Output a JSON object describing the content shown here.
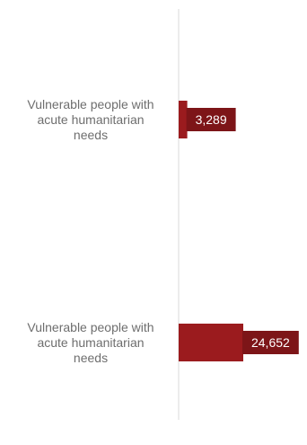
{
  "chart_data": {
    "type": "bar",
    "orientation": "horizontal",
    "categories": [
      "Vulnerable people with acute humanitarian needs",
      "Vulnerable people with acute humanitarian needs"
    ],
    "values": [
      3289,
      24652
    ],
    "value_labels": [
      "3,289",
      "24,652"
    ],
    "xlim": [
      0,
      24652
    ],
    "grid": false,
    "legend": "none",
    "bar_color": "#9b1b1e",
    "label_box_color": "#7d1518",
    "axis_color": "#d9d9d9",
    "label_color": "#6e6e6e"
  }
}
